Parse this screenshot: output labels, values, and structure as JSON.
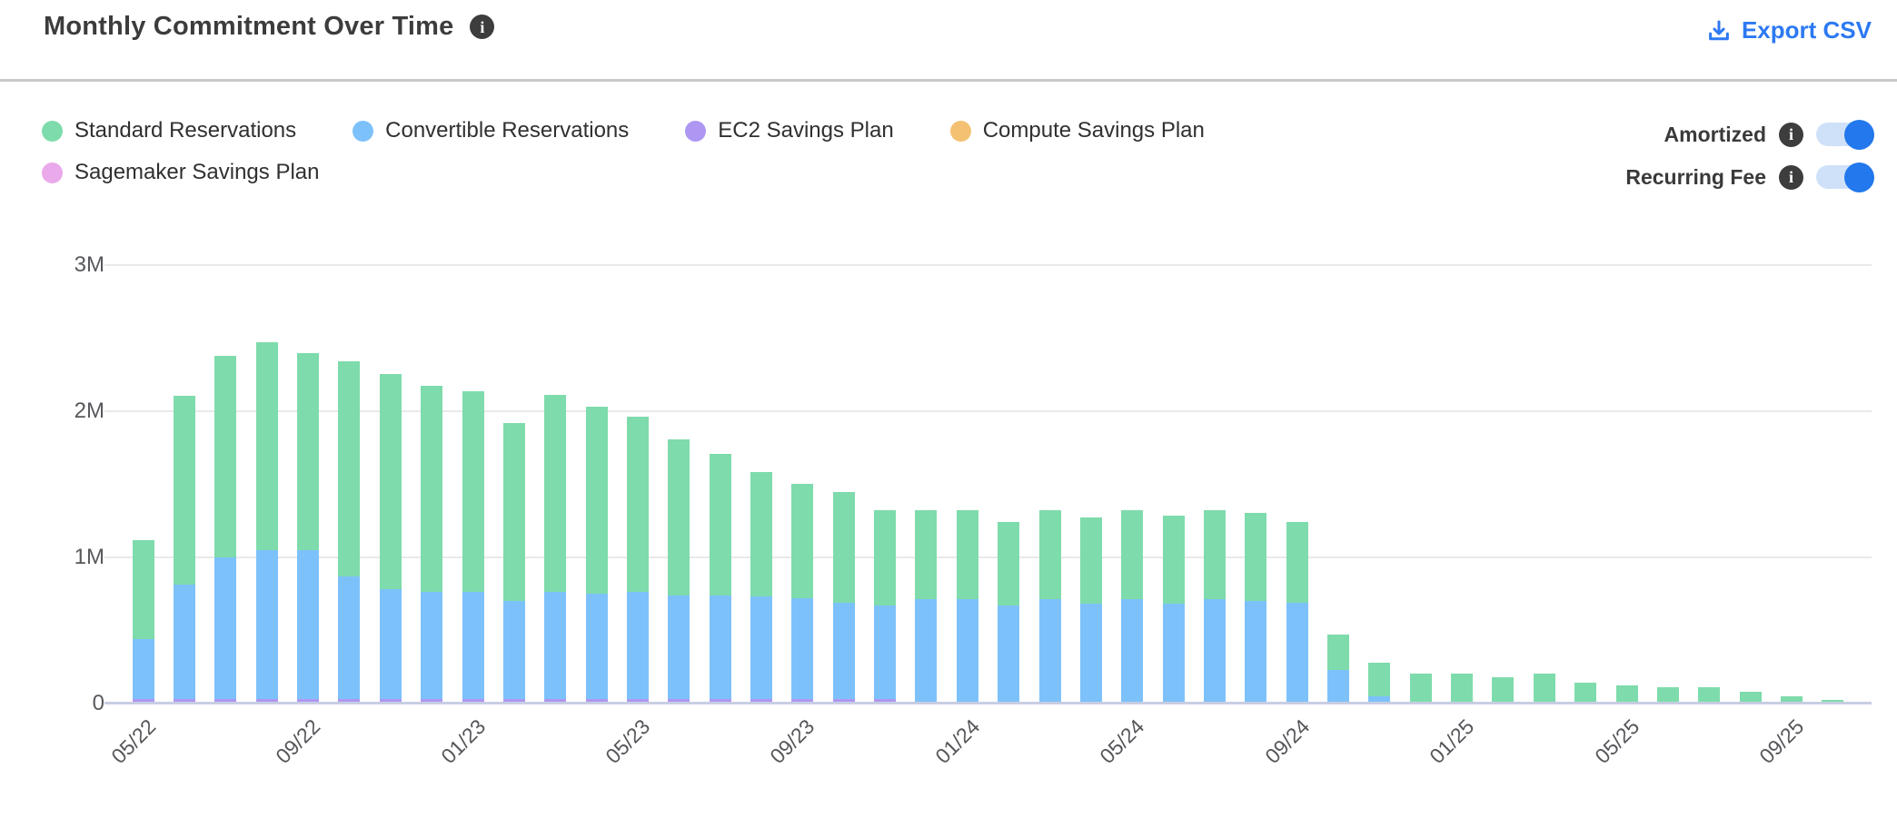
{
  "header": {
    "title": "Monthly Commitment Over Time",
    "title_info_icon": "i",
    "export_label": "Export CSV"
  },
  "toggles": [
    {
      "label": "Amortized",
      "on": true
    },
    {
      "label": "Recurring Fee",
      "on": true
    }
  ],
  "colors": {
    "accent_blue": "#2c79f2",
    "toggle_track": "#cfe1f9",
    "toggle_knob": "#2278ec",
    "gridline": "#e9e9e9",
    "axis_line": "#c8cee2"
  },
  "chart_data": {
    "type": "bar",
    "stacked": true,
    "title": "Monthly Commitment Over Time",
    "unit": "millions (M)",
    "ylabel": "",
    "xlabel": "",
    "ylim": [
      0,
      3
    ],
    "y_ticks": [
      "0",
      "1M",
      "2M",
      "3M"
    ],
    "x_tick_every": 4,
    "gridlines": true,
    "legend_position": "top-left",
    "stack_order_bottom_to_top": [
      "EC2 Savings Plan",
      "Sagemaker Savings Plan",
      "Convertible Reservations",
      "Standard Reservations",
      "Compute Savings Plan"
    ],
    "categories": [
      "05/22",
      "06/22",
      "07/22",
      "08/22",
      "09/22",
      "10/22",
      "11/22",
      "12/22",
      "01/23",
      "02/23",
      "03/23",
      "04/23",
      "05/23",
      "06/23",
      "07/23",
      "08/23",
      "09/23",
      "10/23",
      "11/23",
      "12/23",
      "01/24",
      "02/24",
      "03/24",
      "04/24",
      "05/24",
      "06/24",
      "07/24",
      "08/24",
      "09/24",
      "10/24",
      "11/24",
      "12/24",
      "01/25",
      "02/25",
      "03/25",
      "04/25",
      "05/25",
      "06/25",
      "07/25",
      "08/25",
      "09/25",
      "10/25"
    ],
    "series": [
      {
        "name": "Standard Reservations",
        "color": "#7edbac",
        "values": [
          0.68,
          1.29,
          1.38,
          1.42,
          1.35,
          1.47,
          1.47,
          1.41,
          1.37,
          1.22,
          1.35,
          1.28,
          1.2,
          1.07,
          0.97,
          0.85,
          0.78,
          0.76,
          0.65,
          0.61,
          0.61,
          0.57,
          0.61,
          0.59,
          0.61,
          0.6,
          0.61,
          0.6,
          0.55,
          0.245,
          0.23,
          0.19,
          0.19,
          0.165,
          0.19,
          0.13,
          0.11,
          0.1,
          0.1,
          0.07,
          0.04,
          0.015
        ]
      },
      {
        "name": "Convertible Reservations",
        "color": "#7dc1fb",
        "values": [
          0.41,
          0.78,
          0.97,
          1.02,
          1.02,
          0.84,
          0.75,
          0.73,
          0.73,
          0.67,
          0.73,
          0.72,
          0.73,
          0.71,
          0.71,
          0.7,
          0.69,
          0.66,
          0.64,
          0.7,
          0.7,
          0.66,
          0.7,
          0.67,
          0.7,
          0.67,
          0.7,
          0.69,
          0.68,
          0.215,
          0.04,
          0,
          0,
          0,
          0,
          0,
          0,
          0,
          0,
          0,
          0,
          0
        ]
      },
      {
        "name": "EC2 Savings Plan",
        "color": "#ae97f2",
        "values": [
          0.02,
          0.02,
          0.02,
          0.02,
          0.02,
          0.02,
          0.02,
          0.02,
          0.02,
          0.02,
          0.02,
          0.02,
          0.02,
          0.02,
          0.02,
          0.02,
          0.02,
          0.02,
          0.02,
          0,
          0,
          0,
          0,
          0,
          0,
          0,
          0,
          0,
          0,
          0,
          0,
          0,
          0,
          0,
          0,
          0,
          0,
          0,
          0,
          0,
          0,
          0
        ]
      },
      {
        "name": "Compute Savings Plan",
        "color": "#f4c172",
        "values": [
          0,
          0,
          0,
          0,
          0,
          0,
          0,
          0,
          0,
          0,
          0,
          0,
          0,
          0,
          0,
          0,
          0,
          0,
          0,
          0,
          0,
          0,
          0,
          0,
          0,
          0,
          0,
          0,
          0,
          0,
          0,
          0,
          0,
          0,
          0,
          0,
          0,
          0,
          0,
          0,
          0,
          0
        ]
      },
      {
        "name": "Sagemaker Savings Plan",
        "color": "#e9a9ea",
        "values": [
          0,
          0,
          0,
          0,
          0,
          0,
          0,
          0,
          0,
          0,
          0,
          0,
          0,
          0,
          0,
          0,
          0,
          0,
          0,
          0,
          0,
          0,
          0,
          0,
          0,
          0,
          0,
          0,
          0,
          0,
          0,
          0,
          0,
          0,
          0,
          0,
          0,
          0,
          0,
          0,
          0,
          0
        ]
      }
    ]
  }
}
